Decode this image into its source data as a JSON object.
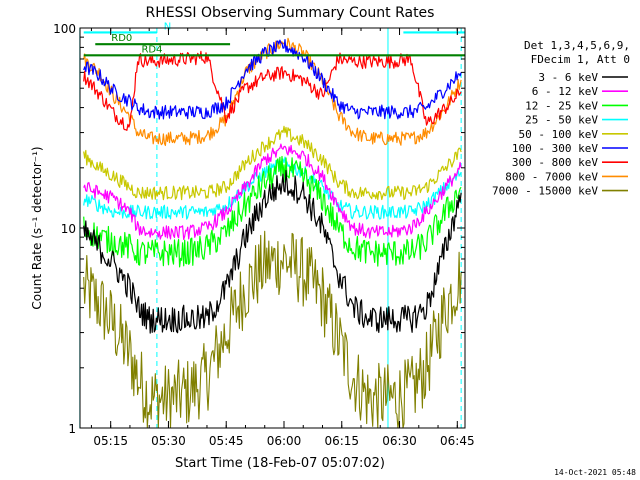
{
  "chart_data": {
    "type": "line",
    "title": "RHESSI Observing Summary Count Rates",
    "xlabel": "Start Time (18-Feb-07 05:07:02)",
    "ylabel": "Count Rate (s⁻¹ detector⁻¹)",
    "x_range": [
      "05:07",
      "06:47"
    ],
    "x_ticks": [
      "05:15",
      "05:30",
      "05:45",
      "06:00",
      "06:15",
      "06:30",
      "06:45"
    ],
    "y_scale": "log",
    "ylim": [
      1,
      100
    ],
    "y_ticks": [
      "1",
      "10",
      "100"
    ],
    "grid": false,
    "legend": {
      "position": "right",
      "header": [
        "Det 1,3,4,5,6,9,",
        "FDecim 1, Att 0"
      ]
    },
    "series": [
      {
        "name": "3 - 6 keV",
        "color": "#000000",
        "x": [
          "05:08",
          "05:12",
          "05:16",
          "05:20",
          "05:22",
          "05:25",
          "05:30",
          "05:35",
          "05:40",
          "05:45",
          "05:50",
          "05:55",
          "06:00",
          "06:05",
          "06:10",
          "06:14",
          "06:18",
          "06:22",
          "06:28",
          "06:33",
          "06:37",
          "06:42",
          "06:46"
        ],
        "y": [
          9.5,
          8,
          6.5,
          5,
          4,
          3.5,
          3.5,
          3.5,
          3.5,
          5,
          9,
          14,
          17,
          15,
          10,
          6,
          4,
          3.5,
          3.5,
          3.5,
          4,
          8,
          15
        ]
      },
      {
        "name": "6 - 12 keV",
        "color": "#ff00ff",
        "x": [
          "05:08",
          "05:12",
          "05:16",
          "05:20",
          "05:22",
          "05:25",
          "05:30",
          "05:35",
          "05:40",
          "05:45",
          "05:50",
          "05:55",
          "06:00",
          "06:05",
          "06:10",
          "06:14",
          "06:18",
          "06:22",
          "06:28",
          "06:33",
          "06:37",
          "06:42",
          "06:46"
        ],
        "y": [
          16,
          15,
          14,
          12,
          10,
          9.5,
          9.5,
          9.5,
          10,
          12,
          16,
          22,
          25,
          23,
          18,
          13,
          10,
          9.5,
          9.5,
          10,
          12,
          16,
          20
        ]
      },
      {
        "name": "12 - 25 keV",
        "color": "#00ff00",
        "x": [
          "05:08",
          "05:12",
          "05:16",
          "05:20",
          "05:22",
          "05:25",
          "05:30",
          "05:35",
          "05:40",
          "05:45",
          "05:50",
          "05:55",
          "06:00",
          "06:05",
          "06:10",
          "06:14",
          "06:18",
          "06:22",
          "06:28",
          "06:33",
          "06:37",
          "06:42",
          "06:46"
        ],
        "y": [
          10,
          9,
          8.5,
          8,
          7.5,
          7.5,
          7.5,
          7.5,
          8,
          9.5,
          13,
          17,
          20,
          18,
          14,
          10,
          8,
          7.5,
          7.5,
          7.5,
          8.5,
          12,
          16
        ]
      },
      {
        "name": "25 - 50 keV",
        "color": "#00ffff",
        "x": [
          "05:08",
          "05:12",
          "05:16",
          "05:20",
          "05:22",
          "05:25",
          "05:30",
          "05:35",
          "05:40",
          "05:45",
          "05:50",
          "05:55",
          "06:00",
          "06:05",
          "06:10",
          "06:14",
          "06:18",
          "06:22",
          "06:28",
          "06:33",
          "06:37",
          "06:42",
          "06:46"
        ],
        "y": [
          14,
          13,
          12,
          12,
          12,
          12,
          12,
          12,
          12,
          13,
          16,
          19,
          21,
          19,
          16,
          13,
          12,
          12,
          12,
          12,
          13,
          16,
          19
        ]
      },
      {
        "name": "50 - 100 keV",
        "color": "#c8c800",
        "x": [
          "05:08",
          "05:12",
          "05:16",
          "05:20",
          "05:22",
          "05:25",
          "05:30",
          "05:35",
          "05:40",
          "05:45",
          "05:50",
          "05:55",
          "06:00",
          "06:05",
          "06:10",
          "06:14",
          "06:18",
          "06:22",
          "06:28",
          "06:33",
          "06:37",
          "06:42",
          "06:46"
        ],
        "y": [
          23,
          20,
          18,
          16,
          15,
          15,
          15,
          15,
          15,
          16,
          21,
          26,
          30,
          27,
          22,
          17,
          15,
          15,
          15,
          15,
          16,
          20,
          24
        ]
      },
      {
        "name": "100 - 300 keV",
        "color": "#0000ff",
        "x": [
          "05:08",
          "05:12",
          "05:16",
          "05:20",
          "05:22",
          "05:25",
          "05:30",
          "05:35",
          "05:40",
          "05:45",
          "05:50",
          "05:55",
          "06:00",
          "06:05",
          "06:10",
          "06:14",
          "06:18",
          "06:22",
          "06:28",
          "06:33",
          "06:37",
          "06:42",
          "06:46"
        ],
        "y": [
          65,
          58,
          48,
          43,
          40,
          38,
          38,
          38,
          38,
          42,
          62,
          75,
          82,
          72,
          55,
          42,
          38,
          38,
          38,
          38,
          40,
          50,
          60
        ]
      },
      {
        "name": "300 - 800 keV",
        "color": "#ff0000",
        "x": [
          "05:08",
          "05:12",
          "05:16",
          "05:20",
          "05:22",
          "05:25",
          "05:30",
          "05:35",
          "05:40",
          "05:45",
          "05:50",
          "05:55",
          "06:00",
          "06:05",
          "06:10",
          "06:14",
          "06:18",
          "06:22",
          "06:28",
          "06:33",
          "06:37",
          "06:42",
          "06:46"
        ],
        "y": [
          58,
          47,
          37,
          32,
          70,
          68,
          69,
          70,
          72,
          36,
          50,
          57,
          60,
          55,
          46,
          70,
          68,
          68,
          68,
          70,
          33,
          40,
          48
        ]
      },
      {
        "name": "800 - 7000 keV",
        "color": "#ff8c00",
        "x": [
          "05:08",
          "05:12",
          "05:16",
          "05:20",
          "05:22",
          "05:25",
          "05:30",
          "05:35",
          "05:40",
          "05:45",
          "05:50",
          "05:55",
          "06:00",
          "06:05",
          "06:10",
          "06:14",
          "06:18",
          "06:22",
          "06:28",
          "06:33",
          "06:37",
          "06:42",
          "06:46"
        ],
        "y": [
          70,
          60,
          45,
          36,
          30,
          28,
          28,
          28,
          29,
          35,
          60,
          75,
          85,
          75,
          55,
          37,
          30,
          28,
          28,
          28,
          30,
          40,
          55
        ]
      },
      {
        "name": "7000 - 15000 keV",
        "color": "#808000",
        "x": [
          "05:08",
          "05:12",
          "05:16",
          "05:20",
          "05:22",
          "05:25",
          "05:30",
          "05:35",
          "05:40",
          "05:45",
          "05:50",
          "05:55",
          "06:00",
          "06:05",
          "06:10",
          "06:14",
          "06:18",
          "06:22",
          "06:28",
          "06:33",
          "06:37",
          "06:42",
          "06:46"
        ],
        "y": [
          5,
          4.2,
          3.2,
          2.3,
          1.8,
          1.4,
          1.4,
          1.5,
          1.8,
          3,
          5,
          6.5,
          7,
          6,
          4.5,
          2.8,
          1.8,
          1.4,
          1.4,
          1.5,
          2,
          4,
          6
        ]
      }
    ],
    "annotations": [
      {
        "label": "RD0",
        "color": "#008000",
        "x_start": "05:11",
        "x_end": "05:46",
        "y": 83
      },
      {
        "label": "RD4",
        "color": "#008000",
        "x_start": "05:08",
        "x_end": "06:47",
        "y": 73
      },
      {
        "label": "N",
        "color": "#00ffff",
        "x_start": "05:08",
        "x_end": "05:27",
        "y": 95
      },
      {
        "label": "",
        "color": "#00ffff",
        "x_start": "06:31",
        "x_end": "06:47",
        "y": 95
      }
    ],
    "vertical_markers": [
      {
        "x": "05:07",
        "color": "#00ffff",
        "style": "solid"
      },
      {
        "x": "05:27",
        "color": "#00ffff",
        "style": "dashed"
      },
      {
        "x": "06:27",
        "color": "#00ffff",
        "style": "solid"
      },
      {
        "x": "06:46",
        "color": "#00ffff",
        "style": "dashed"
      }
    ]
  },
  "footer": {
    "timestamp": "14-Oct-2021 05:48"
  }
}
